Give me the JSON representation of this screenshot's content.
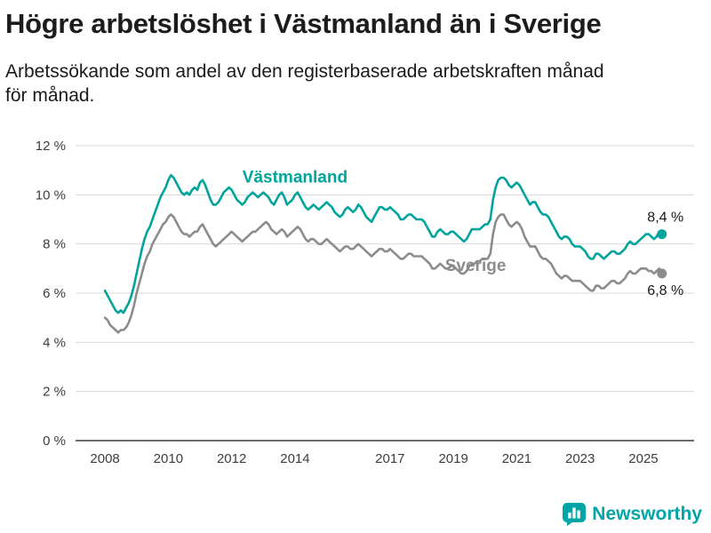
{
  "chart_data": {
    "type": "line",
    "title": "Högre arbetslöshet i Västmanland än i Sverige",
    "subtitle": "Arbetssökande som andel av den registerbaserade arbetskraften månad\nför månad.",
    "ylim": [
      0,
      12
    ],
    "xlim": [
      2007.24,
      2026.6
    ],
    "grid": "horizontal",
    "start_year": 2008,
    "points_per_year": 12,
    "y_ticks": [
      {
        "value": 0,
        "label": "0 %"
      },
      {
        "value": 2,
        "label": "2 %"
      },
      {
        "value": 4,
        "label": "4 %"
      },
      {
        "value": 6,
        "label": "6 %"
      },
      {
        "value": 8,
        "label": "8 %"
      },
      {
        "value": 10,
        "label": "10 %"
      },
      {
        "value": 12,
        "label": "12 %"
      }
    ],
    "x_ticks": [
      {
        "value": 2008,
        "label": "2008"
      },
      {
        "value": 2010,
        "label": "2010"
      },
      {
        "value": 2012,
        "label": "2012"
      },
      {
        "value": 2014,
        "label": "2014"
      },
      {
        "value": 2017,
        "label": "2017"
      },
      {
        "value": 2019,
        "label": "2019"
      },
      {
        "value": 2021,
        "label": "2021"
      },
      {
        "value": 2023,
        "label": "2023"
      },
      {
        "value": 2025,
        "label": "2025"
      }
    ],
    "series": [
      {
        "name": "Sverige",
        "color": "#8c8c8c",
        "inline_label": {
          "text": "Sverige",
          "t": 2019.7,
          "v": 6.9
        },
        "end_label": {
          "text": "6,8 %",
          "dy": 24
        },
        "end_value": 6.8,
        "values": [
          5.0,
          4.9,
          4.7,
          4.6,
          4.5,
          4.4,
          4.5,
          4.5,
          4.6,
          4.8,
          5.1,
          5.5,
          6.0,
          6.4,
          6.8,
          7.2,
          7.5,
          7.7,
          8.0,
          8.2,
          8.4,
          8.6,
          8.8,
          8.9,
          9.1,
          9.2,
          9.1,
          8.9,
          8.7,
          8.5,
          8.4,
          8.4,
          8.3,
          8.4,
          8.5,
          8.5,
          8.7,
          8.8,
          8.6,
          8.4,
          8.2,
          8.0,
          7.9,
          8.0,
          8.1,
          8.2,
          8.3,
          8.4,
          8.5,
          8.4,
          8.3,
          8.2,
          8.1,
          8.2,
          8.3,
          8.4,
          8.5,
          8.5,
          8.6,
          8.7,
          8.8,
          8.9,
          8.8,
          8.6,
          8.5,
          8.4,
          8.5,
          8.6,
          8.5,
          8.3,
          8.4,
          8.5,
          8.6,
          8.7,
          8.6,
          8.4,
          8.2,
          8.1,
          8.2,
          8.2,
          8.1,
          8.0,
          8.0,
          8.1,
          8.2,
          8.1,
          8.0,
          7.9,
          7.8,
          7.7,
          7.8,
          7.9,
          7.9,
          7.8,
          7.8,
          7.9,
          8.0,
          7.9,
          7.8,
          7.7,
          7.6,
          7.5,
          7.6,
          7.7,
          7.8,
          7.8,
          7.7,
          7.7,
          7.8,
          7.7,
          7.6,
          7.5,
          7.4,
          7.4,
          7.5,
          7.6,
          7.6,
          7.5,
          7.5,
          7.5,
          7.5,
          7.4,
          7.3,
          7.2,
          7.0,
          7.0,
          7.1,
          7.2,
          7.1,
          7.0,
          7.0,
          7.1,
          7.1,
          7.0,
          6.9,
          6.8,
          6.8,
          6.9,
          7.1,
          7.2,
          7.2,
          7.3,
          7.3,
          7.4,
          7.4,
          7.4,
          7.6,
          8.4,
          8.9,
          9.1,
          9.2,
          9.2,
          9.0,
          8.8,
          8.7,
          8.8,
          8.9,
          8.8,
          8.6,
          8.3,
          8.1,
          7.9,
          7.9,
          7.9,
          7.7,
          7.5,
          7.4,
          7.4,
          7.3,
          7.2,
          7.0,
          6.8,
          6.7,
          6.6,
          6.7,
          6.7,
          6.6,
          6.5,
          6.5,
          6.5,
          6.5,
          6.4,
          6.3,
          6.2,
          6.1,
          6.1,
          6.3,
          6.3,
          6.2,
          6.2,
          6.3,
          6.4,
          6.5,
          6.5,
          6.4,
          6.4,
          6.5,
          6.6,
          6.8,
          6.9,
          6.8,
          6.8,
          6.9,
          7.0,
          7.0,
          7.0,
          6.9,
          6.9,
          6.8,
          6.9,
          7.0,
          6.8
        ]
      },
      {
        "name": "Västmanland",
        "color": "#00a49c",
        "inline_label": {
          "text": "Västmanland",
          "t": 2014.0,
          "v": 10.5
        },
        "end_label": {
          "text": "8,4 %",
          "dy": -14
        },
        "end_value": 8.4,
        "values": [
          6.1,
          5.9,
          5.7,
          5.5,
          5.3,
          5.2,
          5.3,
          5.2,
          5.4,
          5.6,
          5.9,
          6.3,
          6.8,
          7.3,
          7.8,
          8.2,
          8.5,
          8.7,
          9.0,
          9.3,
          9.6,
          9.9,
          10.1,
          10.3,
          10.6,
          10.8,
          10.7,
          10.5,
          10.3,
          10.1,
          10.0,
          10.1,
          10.0,
          10.2,
          10.3,
          10.2,
          10.5,
          10.6,
          10.4,
          10.1,
          9.8,
          9.6,
          9.6,
          9.7,
          9.9,
          10.1,
          10.2,
          10.3,
          10.2,
          10.0,
          9.8,
          9.7,
          9.6,
          9.7,
          9.9,
          10.0,
          10.1,
          10.0,
          9.9,
          10.0,
          10.1,
          10.0,
          9.9,
          9.7,
          9.6,
          9.8,
          10.0,
          10.1,
          9.9,
          9.6,
          9.7,
          9.8,
          10.0,
          10.1,
          9.9,
          9.7,
          9.5,
          9.4,
          9.5,
          9.6,
          9.5,
          9.4,
          9.5,
          9.6,
          9.7,
          9.6,
          9.5,
          9.3,
          9.2,
          9.1,
          9.2,
          9.4,
          9.5,
          9.4,
          9.3,
          9.4,
          9.6,
          9.5,
          9.3,
          9.1,
          9.0,
          8.9,
          9.1,
          9.3,
          9.5,
          9.5,
          9.4,
          9.4,
          9.5,
          9.4,
          9.3,
          9.2,
          9.0,
          9.0,
          9.1,
          9.2,
          9.2,
          9.1,
          9.0,
          9.0,
          9.0,
          8.9,
          8.7,
          8.5,
          8.3,
          8.3,
          8.5,
          8.6,
          8.5,
          8.4,
          8.4,
          8.5,
          8.5,
          8.4,
          8.3,
          8.2,
          8.1,
          8.2,
          8.4,
          8.6,
          8.6,
          8.6,
          8.6,
          8.7,
          8.8,
          8.8,
          9.0,
          9.8,
          10.3,
          10.6,
          10.7,
          10.7,
          10.6,
          10.4,
          10.3,
          10.4,
          10.5,
          10.4,
          10.2,
          10.0,
          9.8,
          9.6,
          9.7,
          9.7,
          9.5,
          9.3,
          9.2,
          9.2,
          9.1,
          8.9,
          8.7,
          8.5,
          8.3,
          8.2,
          8.3,
          8.3,
          8.2,
          8.0,
          7.9,
          7.9,
          7.9,
          7.8,
          7.7,
          7.5,
          7.4,
          7.4,
          7.6,
          7.6,
          7.5,
          7.4,
          7.5,
          7.6,
          7.7,
          7.7,
          7.6,
          7.6,
          7.7,
          7.8,
          8.0,
          8.1,
          8.0,
          8.0,
          8.1,
          8.2,
          8.3,
          8.4,
          8.4,
          8.3,
          8.2,
          8.3,
          8.5,
          8.4
        ]
      }
    ],
    "style": {
      "grid_color": "#d9d9d9",
      "axis_color": "#3c3c3c",
      "tick_color": "#3d3d3d"
    }
  },
  "footer": {
    "brand": "Newsworthy",
    "logo_icon": "bar-chart-bubble-icon",
    "brand_color": "#00a5a6"
  }
}
